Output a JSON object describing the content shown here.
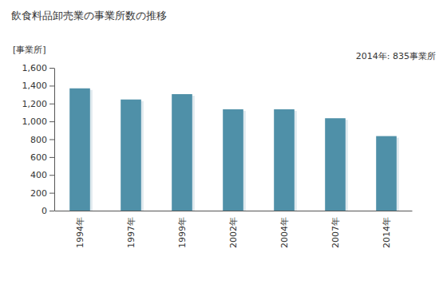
{
  "chart_data": {
    "type": "bar",
    "title": "飲食料品卸売業の事業所数の推移",
    "subtitle": "2014年: 835事業所",
    "y_label": "[事業所]",
    "categories": [
      "1994年",
      "1997年",
      "1999年",
      "2002年",
      "2004年",
      "2007年",
      "2014年"
    ],
    "values": [
      1370,
      1245,
      1305,
      1135,
      1135,
      1035,
      835
    ],
    "color": "#4f90a8",
    "ylim": [
      0,
      1600
    ],
    "yticks": [
      0,
      200,
      400,
      600,
      800,
      {
        "value": 1000,
        "label": "1,000"
      },
      {
        "value": 1200,
        "label": "1,200"
      },
      {
        "value": 1400,
        "label": "1,400"
      },
      {
        "value": 1600,
        "label": "1,600"
      }
    ],
    "grid": false
  }
}
